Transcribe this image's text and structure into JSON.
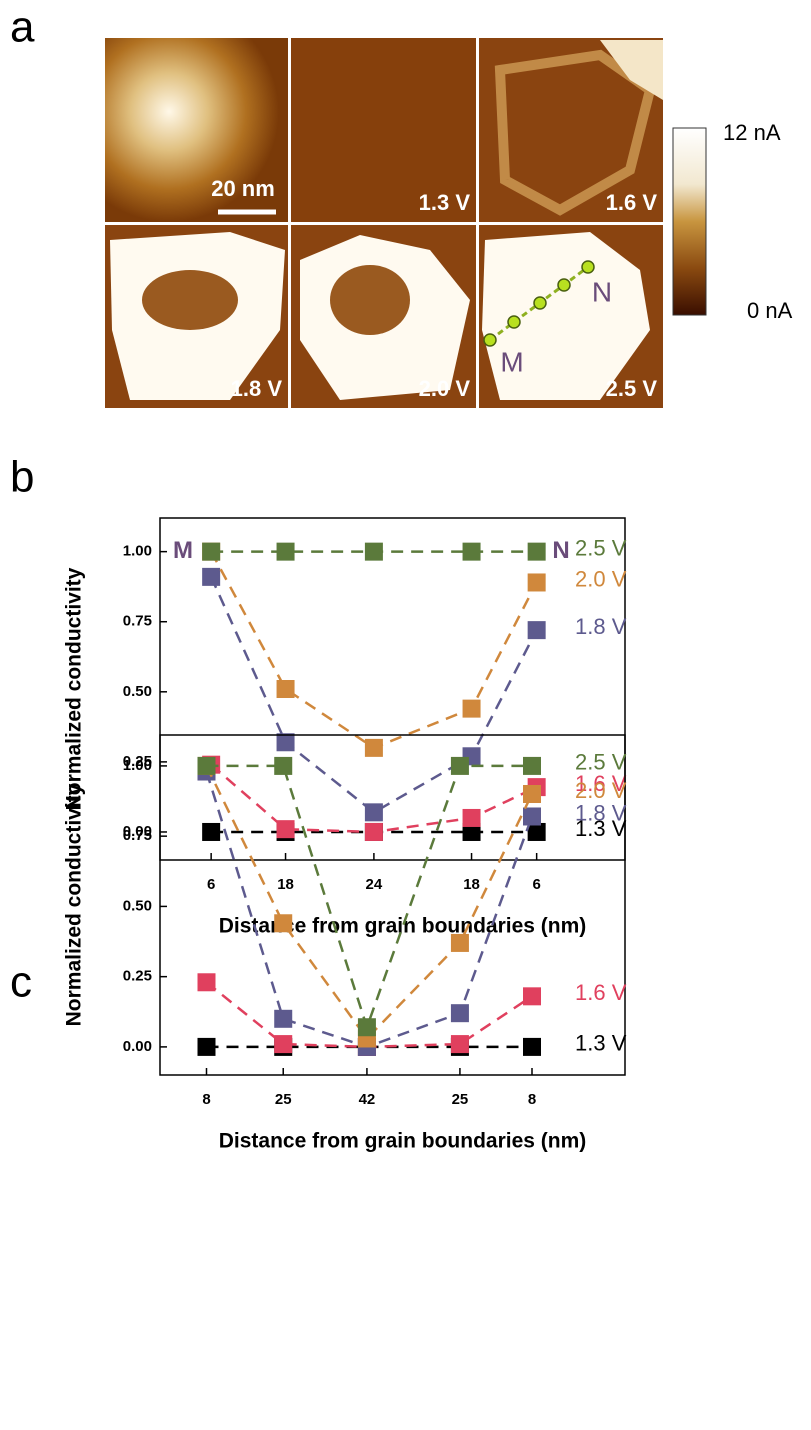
{
  "panel_labels": [
    "a",
    "b",
    "c"
  ],
  "panel_a": {
    "scale_bar": "20 nm",
    "image_labels": [
      "1.3 V",
      "1.6 V",
      "1.8 V",
      "2.0 V",
      "2.5 V"
    ],
    "line_ends": [
      "M",
      "N"
    ],
    "colorbar": {
      "max_label": "12 nA",
      "min_label": "0 nA"
    }
  },
  "chart_data": [
    {
      "type": "line",
      "line_style": "dashed",
      "marker": "square",
      "xlabel": "Distance from grain boundaries (nm)",
      "ylabel": "Normalized conductivity",
      "endpoint_labels": [
        "M",
        "N"
      ],
      "x": [
        11,
        27,
        46,
        67,
        81
      ],
      "xlim": [
        0,
        100
      ],
      "xticks": [
        {
          "value": 11,
          "label": "6"
        },
        {
          "value": 27,
          "label": "18"
        },
        {
          "value": 46,
          "label": "24"
        },
        {
          "value": 67,
          "label": "18"
        },
        {
          "value": 81,
          "label": "6"
        }
      ],
      "ylim": [
        -0.1,
        1.12
      ],
      "yticks": [
        {
          "value": 0,
          "label": "0.00"
        },
        {
          "value": 0.25,
          "label": "0.25"
        },
        {
          "value": 0.5,
          "label": "0.50"
        },
        {
          "value": 0.75,
          "label": "0.75"
        },
        {
          "value": 1,
          "label": "1.00"
        }
      ],
      "series": [
        {
          "name": "1.3 V",
          "color": "#000000",
          "values": [
            0,
            0,
            0,
            0,
            0
          ]
        },
        {
          "name": "1.6 V",
          "color": "#e0405e",
          "values": [
            0.24,
            0.01,
            0,
            0.05,
            0.16
          ]
        },
        {
          "name": "1.8 V",
          "color": "#5d5a8e",
          "values": [
            0.91,
            0.32,
            0.07,
            0.27,
            0.72
          ]
        },
        {
          "name": "2.0 V",
          "color": "#d0883c",
          "values": [
            1,
            0.51,
            0.3,
            0.44,
            0.89
          ]
        },
        {
          "name": "2.5 V",
          "color": "#5b7a3b",
          "values": [
            1,
            1,
            1,
            1,
            1
          ]
        }
      ]
    },
    {
      "type": "line",
      "line_style": "dashed",
      "marker": "square",
      "xlabel": "Distance from grain boundaries (nm)",
      "ylabel": "Normalized conductivity",
      "x": [
        10,
        26.5,
        44.5,
        64.5,
        80
      ],
      "xlim": [
        0,
        100
      ],
      "xticks": [
        {
          "value": 10,
          "label": "8"
        },
        {
          "value": 26.5,
          "label": "25"
        },
        {
          "value": 44.5,
          "label": "42"
        },
        {
          "value": 64.5,
          "label": "25"
        },
        {
          "value": 80,
          "label": "8"
        }
      ],
      "ylim": [
        -0.1,
        1.11
      ],
      "yticks": [
        {
          "value": 0,
          "label": "0.00"
        },
        {
          "value": 0.25,
          "label": "0.25"
        },
        {
          "value": 0.5,
          "label": "0.50"
        },
        {
          "value": 0.75,
          "label": "0.75"
        },
        {
          "value": 1,
          "label": "1.00"
        }
      ],
      "series": [
        {
          "name": "1.3 V",
          "color": "#000000",
          "values": [
            0,
            0,
            0,
            0,
            0
          ]
        },
        {
          "name": "1.6 V",
          "color": "#e0405e",
          "values": [
            0.23,
            0.01,
            0,
            0.01,
            0.18
          ]
        },
        {
          "name": "1.8 V",
          "color": "#5d5a8e",
          "values": [
            0.98,
            0.1,
            0,
            0.12,
            0.82
          ]
        },
        {
          "name": "2.0 V",
          "color": "#d0883c",
          "values": [
            1,
            0.44,
            0.03,
            0.37,
            0.9
          ]
        },
        {
          "name": "2.5 V",
          "color": "#5b7a3b",
          "values": [
            1,
            1,
            0.07,
            1,
            1
          ]
        }
      ]
    }
  ]
}
